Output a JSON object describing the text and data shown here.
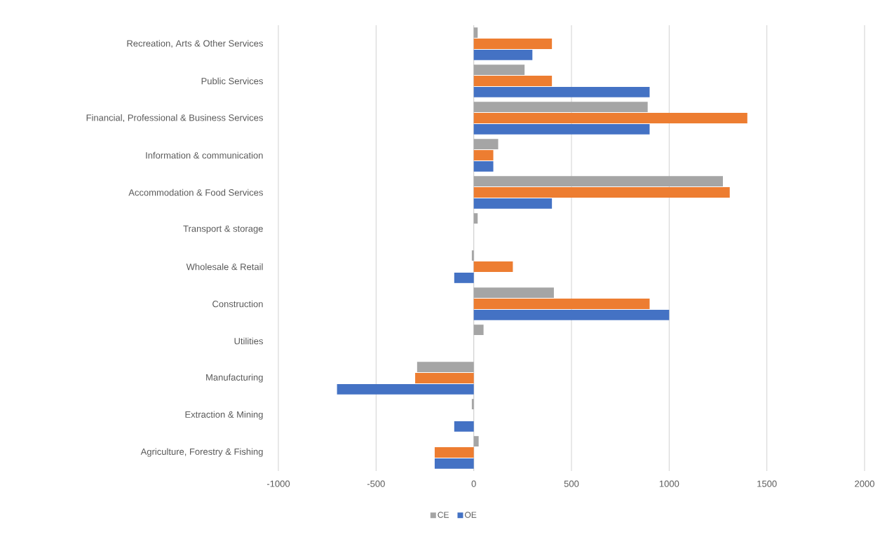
{
  "chart_data": {
    "type": "bar",
    "orientation": "horizontal",
    "categories": [
      "Recreation, Arts & Other Services",
      "Public Services",
      "Financial, Professional & Business Services",
      "Information & communication",
      "Accommodation & Food Services",
      "Transport & storage",
      "Wholesale & Retail",
      "Construction",
      "Utilities",
      "Manufacturing",
      "Extraction & Mining",
      "Agriculture, Forestry & Fishing"
    ],
    "series": [
      {
        "name": "CE",
        "color": "#a5a5a5",
        "values": [
          20,
          260,
          890,
          125,
          1275,
          20,
          -10,
          410,
          50,
          -290,
          -10,
          25
        ]
      },
      {
        "color": "#ed7d31",
        "values": [
          400,
          400,
          1400,
          100,
          1310,
          null,
          200,
          900,
          null,
          -300,
          null,
          -200
        ]
      },
      {
        "name": "OE",
        "color": "#4472c4",
        "values": [
          300,
          900,
          900,
          100,
          400,
          null,
          -100,
          1000,
          null,
          -700,
          -100,
          -200
        ]
      }
    ],
    "xlim": [
      -1000,
      2000
    ],
    "xticks": [
      -1000,
      -500,
      0,
      500,
      1000,
      1500,
      2000
    ],
    "grid": "x",
    "legend": "bottom"
  }
}
